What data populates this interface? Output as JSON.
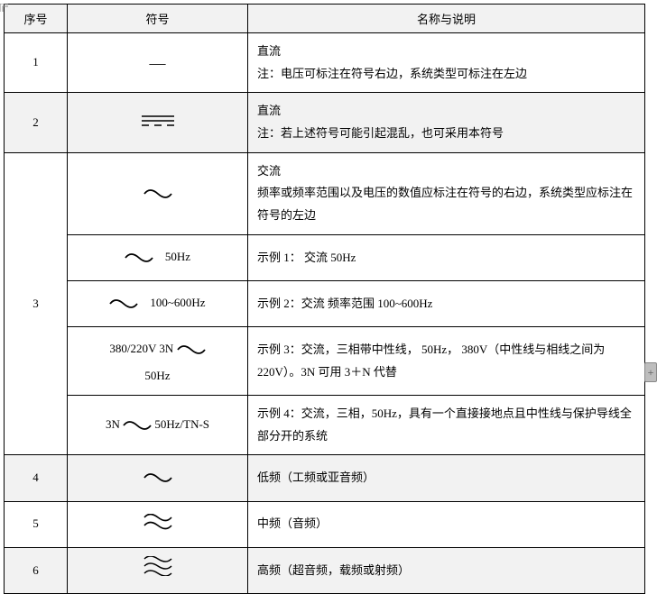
{
  "header": {
    "idx": "序号",
    "sym": "符号",
    "desc": "名称与说明"
  },
  "rows": [
    {
      "idx": "1",
      "cells": [
        {
          "symbol_text": "—",
          "desc_title": "直流",
          "desc_note": "注：电压可标注在符号右边，系统类型可标注在左边"
        }
      ],
      "zebra": "b"
    },
    {
      "idx": "2",
      "cells": [
        {
          "symbol_svg": "dc_triple",
          "desc_title": "直流",
          "desc_note": "注：若上述符号可能引起混乱，也可采用本符号"
        }
      ],
      "zebra": "a"
    },
    {
      "idx": "3",
      "cells": [
        {
          "symbol_svg": "ac1",
          "desc_title": "交流",
          "desc_note": "频率或频率范围以及电压的数值应标注在符号的右边，系统类型应标注在符号的左边"
        },
        {
          "symbol_svg": "ac1",
          "symbol_extra": "　50Hz",
          "desc_title": "示例 1：  交流  50Hz"
        },
        {
          "symbol_svg": "ac1",
          "symbol_extra": "　100~600Hz",
          "desc_title": "示例 2：交流  频率范围 100~600Hz"
        },
        {
          "symbol_pre": "380/220V 3N ",
          "symbol_svg": "ac1",
          "symbol_post_br": "50Hz",
          "desc_title": "示例 3：交流，三相带中性线， 50Hz， 380V（中性线与相线之间为 220V）。3N 可用 3＋N 代替"
        },
        {
          "symbol_pre": "3N ",
          "symbol_svg": "ac1",
          "symbol_extra": " 50Hz/TN-S",
          "desc_title": "示例 4：交流，三相，50Hz，具有一个直接接地点且中性线与保护导线全部分开的系统"
        }
      ],
      "zebra": "b"
    },
    {
      "idx": "4",
      "cells": [
        {
          "symbol_svg": "ac1",
          "desc_title": "低频（工频或亚音频）"
        }
      ],
      "zebra": "a"
    },
    {
      "idx": "5",
      "cells": [
        {
          "symbol_svg": "ac2",
          "desc_title": "中频（音频）"
        }
      ],
      "zebra": "b"
    },
    {
      "idx": "6",
      "cells": [
        {
          "symbol_svg": "ac3",
          "desc_title": "高频（超音频，载频或射频）"
        }
      ],
      "zebra": "a"
    }
  ],
  "svg_defs": {
    "dc_triple": "<svg width='40' height='16' viewBox='0 0 40 16'><line x1='2' y1='3' x2='38' y2='3' stroke='#000' stroke-width='1.5'/><line x1='2' y1='8' x2='38' y2='8' stroke='#000' stroke-width='1.5'/><line x1='2' y1='13' x2='10' y2='13' stroke='#000' stroke-width='1.5'/><line x1='16' y1='13' x2='24' y2='13' stroke='#000' stroke-width='1.5'/><line x1='30' y1='13' x2='38' y2='13' stroke='#000' stroke-width='1.5'/></svg>",
    "ac1": "<svg width='32' height='12' viewBox='0 0 32 12'><path d='M1 6 Q7 -2 16 6 T31 6' fill='none' stroke='#000' stroke-width='1.8'/></svg>",
    "ac2": "<svg width='32' height='18' viewBox='0 0 32 18'><path d='M1 4 Q7 -3 16 4 T31 4' fill='none' stroke='#000' stroke-width='1.6'/><path d='M1 13 Q7 6 16 13 T31 13' fill='none' stroke='#000' stroke-width='1.6'/></svg>",
    "ac3": "<svg width='32' height='22' viewBox='0 0 32 22'><path d='M1 3 Q7 -3 16 3 T31 3' fill='none' stroke='#000' stroke-width='1.5'/><path d='M1 11 Q7 5 16 11 T31 11' fill='none' stroke='#000' stroke-width='1.5'/><path d='M1 19 Q7 13 16 19 T31 19' fill='none' stroke='#000' stroke-width='1.5'/></svg>"
  },
  "side_tab": "+",
  "colors": {
    "zebra_a": "#f2f2f2",
    "zebra_b": "#ffffff",
    "border": "#000000"
  }
}
